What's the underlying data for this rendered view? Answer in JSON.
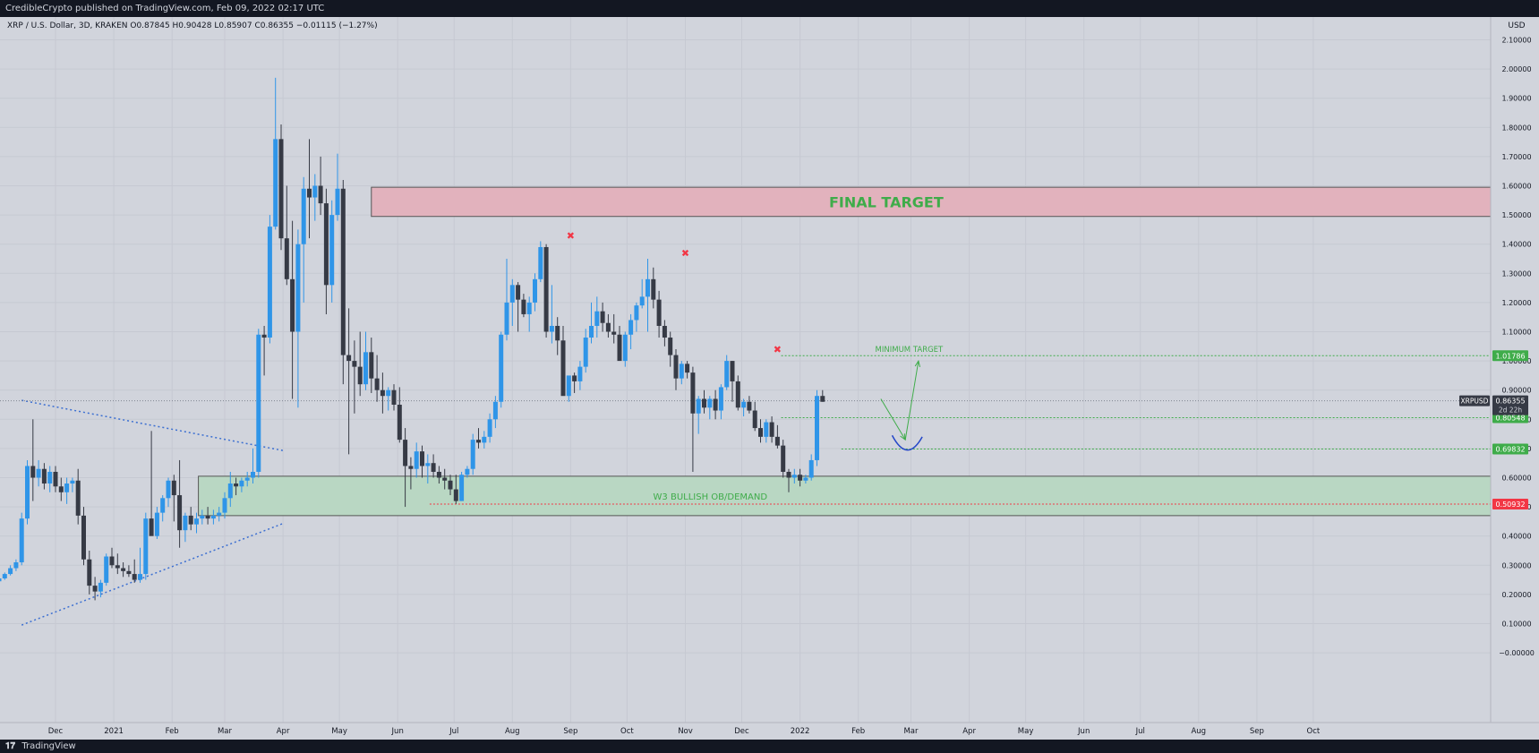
{
  "header": {
    "publish_text": "CredibleCrypto published on TradingView.com, Feb 09, 2022 02:17 UTC"
  },
  "footer": {
    "brand": "TradingView",
    "logo_glyph": "𝟏𝟕"
  },
  "chart_data": {
    "type": "candlestick",
    "symbol_line": "XRP / U.S. Dollar, 3D, KRAKEN  O0.87845  H0.90428  L0.85907  C0.86355  −0.01115 (−1.27%)",
    "currency": "USD",
    "ylim": [
      0,
      2.1
    ],
    "y_ticks": [
      0,
      0.1,
      0.2,
      0.3,
      0.4,
      0.5,
      0.6,
      0.7,
      0.8,
      0.9,
      1.0,
      1.1,
      1.2,
      1.3,
      1.4,
      1.5,
      1.6,
      1.7,
      1.8,
      1.9,
      2.0,
      2.1
    ],
    "y_tick_labels": [
      "−0.00000",
      "0.10000",
      "0.20000",
      "0.30000",
      "0.40000",
      "0.50000",
      "0.60000",
      "0.70000",
      "0.80000",
      "0.90000",
      "1.00000",
      "1.10000",
      "1.20000",
      "1.30000",
      "1.40000",
      "1.50000",
      "1.60000",
      "1.70000",
      "1.80000",
      "1.90000",
      "2.00000",
      "2.10000"
    ],
    "x_labels": [
      {
        "label": "Dec",
        "date": "2020-12-01"
      },
      {
        "label": "2021",
        "date": "2021-01-01"
      },
      {
        "label": "Feb",
        "date": "2021-02-01"
      },
      {
        "label": "Mar",
        "date": "2021-03-01"
      },
      {
        "label": "Apr",
        "date": "2021-04-01"
      },
      {
        "label": "May",
        "date": "2021-05-01"
      },
      {
        "label": "Jun",
        "date": "2021-06-01"
      },
      {
        "label": "Jul",
        "date": "2021-07-01"
      },
      {
        "label": "Aug",
        "date": "2021-08-01"
      },
      {
        "label": "Sep",
        "date": "2021-09-01"
      },
      {
        "label": "Oct",
        "date": "2021-10-01"
      },
      {
        "label": "Nov",
        "date": "2021-11-01"
      },
      {
        "label": "Dec",
        "date": "2021-12-01"
      },
      {
        "label": "2022",
        "date": "2022-01-01"
      },
      {
        "label": "Feb",
        "date": "2022-02-01"
      },
      {
        "label": "Mar",
        "date": "2022-03-01"
      },
      {
        "label": "Apr",
        "date": "2022-04-01"
      },
      {
        "label": "May",
        "date": "2022-05-01"
      },
      {
        "label": "Jun",
        "date": "2022-06-01"
      },
      {
        "label": "Jul",
        "date": "2022-07-01"
      },
      {
        "label": "Aug",
        "date": "2022-08-01"
      },
      {
        "label": "Sep",
        "date": "2022-09-01"
      },
      {
        "label": "Oct",
        "date": "2022-10-01"
      }
    ],
    "grid": true,
    "candle_interval": "3D",
    "candle_start_date": "2020-11-01",
    "candles_ohlc": [
      [
        0.245,
        0.262,
        0.238,
        0.255
      ],
      [
        0.255,
        0.275,
        0.25,
        0.27
      ],
      [
        0.27,
        0.3,
        0.265,
        0.29
      ],
      [
        0.29,
        0.32,
        0.28,
        0.31
      ],
      [
        0.31,
        0.48,
        0.3,
        0.46
      ],
      [
        0.46,
        0.66,
        0.44,
        0.64
      ],
      [
        0.64,
        0.8,
        0.52,
        0.6
      ],
      [
        0.6,
        0.66,
        0.57,
        0.63
      ],
      [
        0.63,
        0.65,
        0.56,
        0.58
      ],
      [
        0.58,
        0.64,
        0.55,
        0.62
      ],
      [
        0.62,
        0.64,
        0.55,
        0.57
      ],
      [
        0.57,
        0.6,
        0.52,
        0.55
      ],
      [
        0.55,
        0.6,
        0.51,
        0.58
      ],
      [
        0.58,
        0.6,
        0.55,
        0.59
      ],
      [
        0.59,
        0.63,
        0.44,
        0.47
      ],
      [
        0.47,
        0.5,
        0.3,
        0.32
      ],
      [
        0.32,
        0.35,
        0.2,
        0.23
      ],
      [
        0.23,
        0.26,
        0.18,
        0.21
      ],
      [
        0.21,
        0.25,
        0.19,
        0.24
      ],
      [
        0.24,
        0.34,
        0.23,
        0.33
      ],
      [
        0.33,
        0.36,
        0.29,
        0.3
      ],
      [
        0.3,
        0.34,
        0.27,
        0.29
      ],
      [
        0.29,
        0.31,
        0.26,
        0.28
      ],
      [
        0.28,
        0.3,
        0.26,
        0.27
      ],
      [
        0.27,
        0.32,
        0.24,
        0.25
      ],
      [
        0.25,
        0.36,
        0.24,
        0.27
      ],
      [
        0.27,
        0.48,
        0.25,
        0.46
      ],
      [
        0.46,
        0.76,
        0.41,
        0.4
      ],
      [
        0.4,
        0.5,
        0.39,
        0.48
      ],
      [
        0.48,
        0.54,
        0.45,
        0.53
      ],
      [
        0.53,
        0.6,
        0.5,
        0.59
      ],
      [
        0.59,
        0.61,
        0.45,
        0.54
      ],
      [
        0.54,
        0.66,
        0.36,
        0.42
      ],
      [
        0.42,
        0.48,
        0.38,
        0.47
      ],
      [
        0.47,
        0.5,
        0.42,
        0.44
      ],
      [
        0.44,
        0.48,
        0.41,
        0.46
      ],
      [
        0.46,
        0.49,
        0.44,
        0.47
      ],
      [
        0.47,
        0.5,
        0.44,
        0.46
      ],
      [
        0.46,
        0.49,
        0.44,
        0.47
      ],
      [
        0.47,
        0.5,
        0.45,
        0.48
      ],
      [
        0.48,
        0.55,
        0.46,
        0.53
      ],
      [
        0.53,
        0.62,
        0.5,
        0.58
      ],
      [
        0.58,
        0.6,
        0.54,
        0.57
      ],
      [
        0.57,
        0.6,
        0.55,
        0.59
      ],
      [
        0.59,
        0.62,
        0.57,
        0.6
      ],
      [
        0.6,
        0.7,
        0.58,
        0.62
      ],
      [
        0.62,
        1.11,
        0.6,
        1.09
      ],
      [
        1.09,
        1.12,
        0.95,
        1.08
      ],
      [
        1.08,
        1.5,
        1.06,
        1.46
      ],
      [
        1.46,
        1.97,
        1.45,
        1.76
      ],
      [
        1.76,
        1.81,
        1.38,
        1.42
      ],
      [
        1.42,
        1.6,
        1.26,
        1.28
      ],
      [
        1.28,
        1.48,
        0.87,
        1.1
      ],
      [
        1.1,
        1.45,
        0.84,
        1.4
      ],
      [
        1.4,
        1.63,
        1.2,
        1.59
      ],
      [
        1.59,
        1.76,
        1.42,
        1.56
      ],
      [
        1.56,
        1.64,
        1.48,
        1.6
      ],
      [
        1.6,
        1.7,
        1.5,
        1.54
      ],
      [
        1.54,
        1.59,
        1.16,
        1.26
      ],
      [
        1.26,
        1.55,
        1.2,
        1.5
      ],
      [
        1.5,
        1.71,
        1.48,
        1.59
      ],
      [
        1.59,
        1.62,
        0.92,
        1.02
      ],
      [
        1.02,
        1.18,
        0.68,
        1.0
      ],
      [
        1.0,
        1.07,
        0.82,
        0.98
      ],
      [
        0.98,
        1.1,
        0.88,
        0.92
      ],
      [
        0.92,
        1.1,
        0.9,
        1.03
      ],
      [
        1.03,
        1.08,
        0.89,
        0.94
      ],
      [
        0.94,
        1.02,
        0.86,
        0.9
      ],
      [
        0.9,
        0.96,
        0.82,
        0.88
      ],
      [
        0.88,
        0.91,
        0.83,
        0.9
      ],
      [
        0.9,
        0.92,
        0.83,
        0.85
      ],
      [
        0.85,
        0.91,
        0.72,
        0.73
      ],
      [
        0.73,
        0.77,
        0.5,
        0.64
      ],
      [
        0.64,
        0.67,
        0.56,
        0.63
      ],
      [
        0.63,
        0.72,
        0.6,
        0.69
      ],
      [
        0.69,
        0.71,
        0.6,
        0.64
      ],
      [
        0.64,
        0.68,
        0.58,
        0.65
      ],
      [
        0.65,
        0.68,
        0.6,
        0.62
      ],
      [
        0.62,
        0.64,
        0.58,
        0.6
      ],
      [
        0.6,
        0.63,
        0.56,
        0.59
      ],
      [
        0.59,
        0.61,
        0.54,
        0.56
      ],
      [
        0.56,
        0.61,
        0.51,
        0.52
      ],
      [
        0.52,
        0.62,
        0.52,
        0.61
      ],
      [
        0.61,
        0.64,
        0.6,
        0.63
      ],
      [
        0.63,
        0.75,
        0.61,
        0.73
      ],
      [
        0.73,
        0.77,
        0.7,
        0.72
      ],
      [
        0.72,
        0.76,
        0.7,
        0.74
      ],
      [
        0.74,
        0.82,
        0.72,
        0.8
      ],
      [
        0.8,
        0.88,
        0.77,
        0.86
      ],
      [
        0.86,
        1.1,
        0.84,
        1.09
      ],
      [
        1.09,
        1.35,
        1.07,
        1.2
      ],
      [
        1.2,
        1.28,
        1.12,
        1.26
      ],
      [
        1.26,
        1.27,
        1.1,
        1.21
      ],
      [
        1.21,
        1.23,
        1.15,
        1.16
      ],
      [
        1.16,
        1.22,
        1.1,
        1.2
      ],
      [
        1.2,
        1.3,
        1.17,
        1.28
      ],
      [
        1.28,
        1.41,
        1.27,
        1.39
      ],
      [
        1.39,
        1.4,
        1.08,
        1.1
      ],
      [
        1.1,
        1.26,
        1.06,
        1.12
      ],
      [
        1.12,
        1.15,
        1.02,
        1.07
      ],
      [
        1.07,
        1.12,
        0.92,
        0.88
      ],
      [
        0.88,
        0.94,
        0.86,
        0.95
      ],
      [
        0.95,
        0.96,
        0.89,
        0.93
      ],
      [
        0.93,
        1.0,
        0.9,
        0.98
      ],
      [
        0.98,
        1.11,
        0.96,
        1.08
      ],
      [
        1.08,
        1.2,
        1.06,
        1.12
      ],
      [
        1.12,
        1.22,
        1.08,
        1.17
      ],
      [
        1.17,
        1.2,
        1.1,
        1.13
      ],
      [
        1.13,
        1.16,
        1.08,
        1.1
      ],
      [
        1.1,
        1.16,
        1.06,
        1.09
      ],
      [
        1.09,
        1.12,
        1.04,
        1.0
      ],
      [
        1.0,
        1.1,
        0.98,
        1.09
      ],
      [
        1.09,
        1.16,
        1.04,
        1.14
      ],
      [
        1.14,
        1.2,
        1.1,
        1.19
      ],
      [
        1.19,
        1.28,
        1.18,
        1.22
      ],
      [
        1.22,
        1.35,
        1.1,
        1.28
      ],
      [
        1.28,
        1.32,
        1.18,
        1.21
      ],
      [
        1.21,
        1.24,
        1.08,
        1.12
      ],
      [
        1.12,
        1.14,
        1.05,
        1.08
      ],
      [
        1.08,
        1.1,
        0.98,
        1.02
      ],
      [
        1.02,
        1.04,
        0.9,
        0.94
      ],
      [
        0.94,
        1.0,
        0.92,
        0.99
      ],
      [
        0.99,
        1.0,
        0.94,
        0.96
      ],
      [
        0.96,
        0.98,
        0.62,
        0.82
      ],
      [
        0.82,
        0.88,
        0.75,
        0.87
      ],
      [
        0.87,
        0.9,
        0.82,
        0.84
      ],
      [
        0.84,
        0.88,
        0.8,
        0.87
      ],
      [
        0.87,
        0.9,
        0.8,
        0.83
      ],
      [
        0.83,
        0.92,
        0.8,
        0.91
      ],
      [
        0.91,
        1.02,
        0.9,
        1.0
      ],
      [
        1.0,
        1.0,
        0.86,
        0.93
      ],
      [
        0.93,
        0.95,
        0.83,
        0.84
      ],
      [
        0.84,
        0.87,
        0.81,
        0.86
      ],
      [
        0.86,
        0.88,
        0.82,
        0.83
      ],
      [
        0.83,
        0.86,
        0.76,
        0.77
      ],
      [
        0.77,
        0.8,
        0.72,
        0.74
      ],
      [
        0.74,
        0.8,
        0.72,
        0.79
      ],
      [
        0.79,
        0.81,
        0.72,
        0.74
      ],
      [
        0.74,
        0.78,
        0.7,
        0.71
      ],
      [
        0.71,
        0.73,
        0.6,
        0.62
      ],
      [
        0.62,
        0.63,
        0.55,
        0.6
      ],
      [
        0.6,
        0.63,
        0.58,
        0.61
      ],
      [
        0.61,
        0.63,
        0.57,
        0.59
      ],
      [
        0.59,
        0.61,
        0.58,
        0.6
      ],
      [
        0.6,
        0.68,
        0.59,
        0.66
      ],
      [
        0.66,
        0.9,
        0.64,
        0.88
      ],
      [
        0.88,
        0.9,
        0.86,
        0.86
      ]
    ],
    "bull_color": "#2f95e8",
    "bear_color": "#363a45",
    "zones": [
      {
        "label": "FINAL TARGET",
        "from": 1.495,
        "to": 1.595,
        "start_date": "2021-05-18",
        "fill": "#e2b2bd",
        "stroke": "#555555",
        "text_color": "#3fac4a"
      },
      {
        "label": "W3 BULLISH OB/DEMAND",
        "from": 0.47,
        "to": 0.605,
        "start_date": "2021-02-15",
        "fill": "#b9d7c3",
        "stroke": "#555555",
        "text_color": "#3fac4a"
      }
    ],
    "levels": [
      {
        "value": 1.01786,
        "label": "1.01786",
        "color": "#3fac4a",
        "start_date": "2021-12-22"
      },
      {
        "value": 0.80548,
        "label": "0.80548",
        "color": "#3fac4a",
        "start_date": "2021-12-22"
      },
      {
        "value": 0.69832,
        "label": "0.69832",
        "color": "#3fac4a",
        "start_date": "2022-01-23"
      },
      {
        "value": 0.50932,
        "label": "0.50932",
        "color": "#f23645",
        "start_date": "2021-06-18"
      }
    ],
    "current_price": {
      "symbol": "XRPUSD",
      "value": 0.86355,
      "label": "0.86355",
      "countdown": "2d 22h"
    },
    "annotations": [
      {
        "type": "text",
        "text": "MINIMUM TARGET",
        "date": "2022-02-28",
        "value": 1.04,
        "color": "#3fac4a"
      }
    ],
    "markers": [
      {
        "glyph": "✖",
        "date": "2021-09-01",
        "value": 1.43,
        "color": "#f23645"
      },
      {
        "glyph": "✖",
        "date": "2021-11-01",
        "value": 1.37,
        "color": "#f23645"
      },
      {
        "glyph": "✖",
        "date": "2021-12-20",
        "value": 1.04,
        "color": "#f23645"
      }
    ],
    "trendlines": [
      {
        "from": {
          "date": "2020-11-13",
          "value": 0.865
        },
        "to": {
          "date": "2021-04-01",
          "value": 0.693
        },
        "color": "#3c6fd1",
        "style": "dotted"
      },
      {
        "from": {
          "date": "2020-11-13",
          "value": 0.095
        },
        "to": {
          "date": "2021-04-01",
          "value": 0.443
        },
        "color": "#3c6fd1",
        "style": "dotted"
      }
    ],
    "projection": [
      {
        "from": {
          "date": "2022-02-13",
          "value": 0.87
        },
        "to": {
          "date": "2022-02-26",
          "value": 0.73
        },
        "color": "#3fac4a"
      },
      {
        "from": {
          "date": "2022-02-26",
          "value": 0.73
        },
        "to": {
          "date": "2022-03-05",
          "value": 1.0
        },
        "color": "#3fac4a"
      }
    ],
    "arc": {
      "from": {
        "date": "2022-02-19",
        "value": 0.745
      },
      "to": {
        "date": "2022-03-07",
        "value": 0.74
      },
      "bottom_value": 0.69,
      "color": "#2346c8"
    }
  }
}
